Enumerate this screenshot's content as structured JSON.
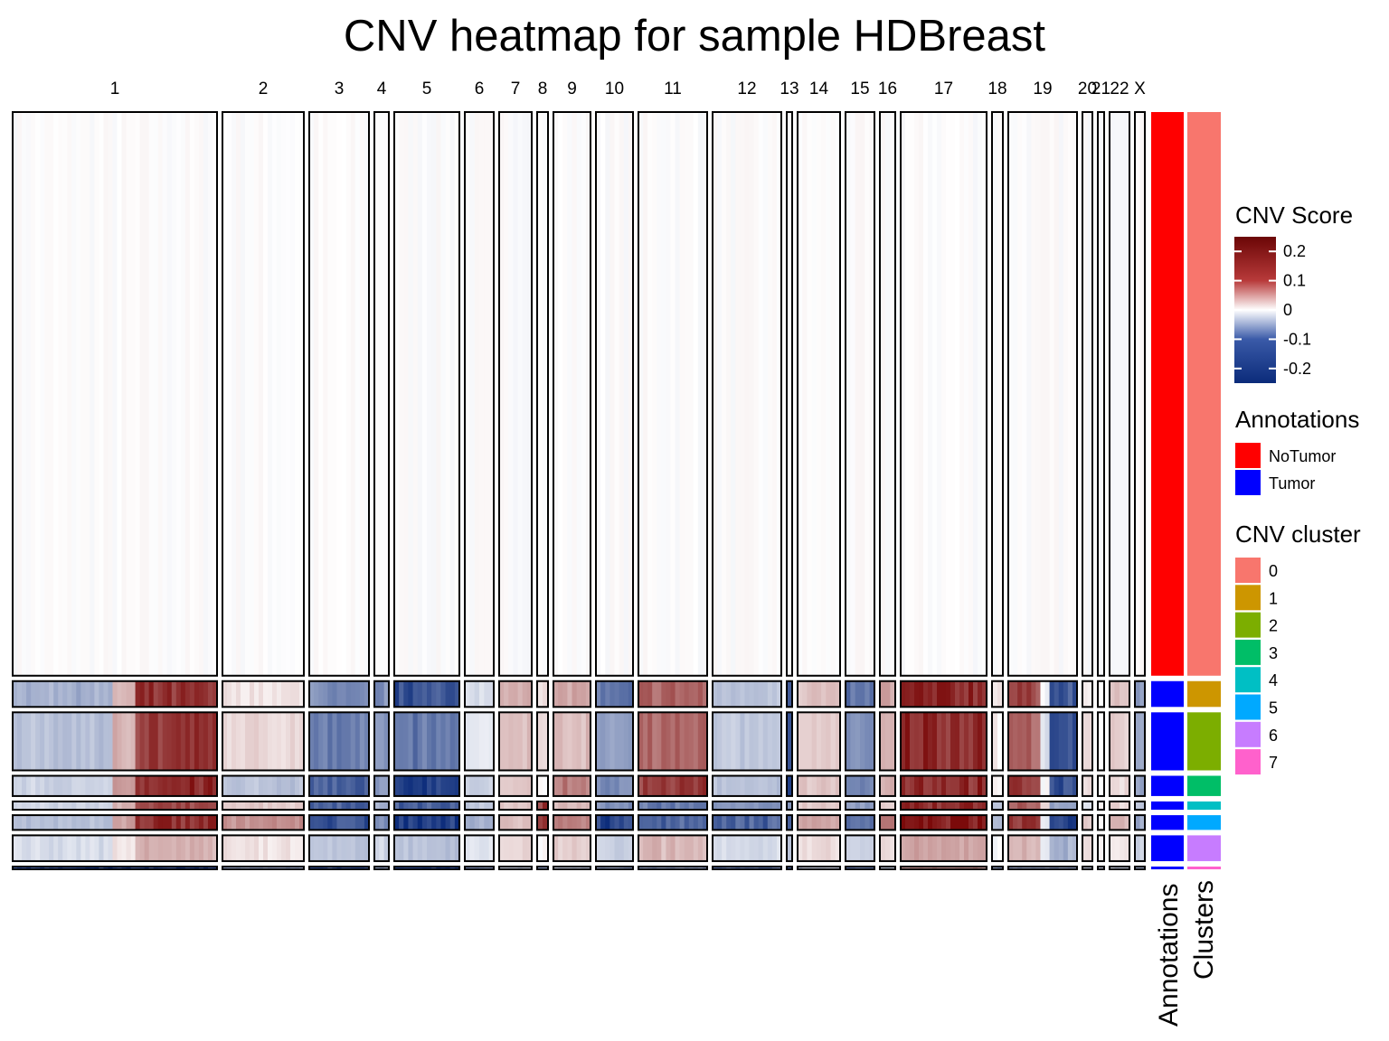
{
  "chart_data": {
    "type": "heatmap",
    "title": "CNV heatmap for sample HDBreast",
    "chromosomes": [
      "1",
      "2",
      "3",
      "4",
      "5",
      "6",
      "7",
      "8",
      "9",
      "10",
      "11",
      "12",
      "13",
      "14",
      "15",
      "16",
      "17",
      "18",
      "19",
      "20",
      "21",
      "22",
      "X"
    ],
    "chromosome_relative_width": [
      226,
      90,
      66,
      16,
      72,
      32,
      36,
      12,
      41,
      41,
      76,
      76,
      6,
      47,
      32,
      17,
      95,
      12,
      76,
      11,
      7,
      22,
      11
    ],
    "colorscale": {
      "title": "CNV Score",
      "range": [
        -0.25,
        0.25
      ],
      "ticks": [
        0.2,
        0.1,
        0,
        -0.1,
        -0.2
      ],
      "tick_labels": [
        "0.2",
        "0.1",
        "0",
        "-0.1",
        "-0.2"
      ],
      "colors": [
        "#0b2b7a",
        "#ffffff",
        "#7b0a0a"
      ]
    },
    "row_groups": [
      {
        "cluster": "0",
        "annotation": "NoTumor",
        "relative_height": 612,
        "profile": [
          0,
          0,
          0,
          0,
          0,
          0,
          0,
          0,
          0,
          0,
          0,
          0,
          0,
          0,
          0,
          0,
          0,
          0,
          0,
          0,
          0,
          0,
          0
        ]
      },
      {
        "cluster": "1",
        "annotation": "Tumor",
        "relative_height": 28,
        "profile": [
          [
            -0.08,
            0.2
          ],
          0.02,
          -0.12,
          -0.12,
          -0.2,
          -0.03,
          0.08,
          0.02,
          0.08,
          -0.15,
          0.15,
          -0.06,
          -0.2,
          0.05,
          -0.15,
          0.08,
          0.22,
          0.02,
          [
            0.18,
            -0.2
          ],
          0.02,
          0.0,
          0.05,
          -0.1
        ]
      },
      {
        "cluster": "2",
        "annotation": "Tumor",
        "relative_height": 63,
        "profile": [
          [
            -0.06,
            0.2
          ],
          0.03,
          -0.15,
          -0.1,
          -0.15,
          -0.02,
          0.06,
          0.02,
          0.06,
          -0.1,
          0.15,
          -0.05,
          -0.2,
          0.04,
          -0.12,
          0.06,
          0.22,
          0.01,
          [
            0.15,
            -0.2
          ],
          0.02,
          0.0,
          0.04,
          -0.08
        ]
      },
      {
        "cluster": "3",
        "annotation": "Tumor",
        "relative_height": 22,
        "profile": [
          [
            -0.04,
            0.22
          ],
          -0.06,
          -0.18,
          -0.12,
          -0.22,
          -0.05,
          0.05,
          0.0,
          0.12,
          -0.12,
          0.2,
          -0.06,
          -0.2,
          0.05,
          -0.14,
          0.08,
          0.22,
          0.0,
          [
            0.2,
            -0.2
          ],
          0.03,
          0.0,
          0.03,
          -0.1
        ]
      },
      {
        "cluster": "4",
        "annotation": "Tumor",
        "relative_height": 9,
        "profile": [
          [
            -0.04,
            0.18
          ],
          0.04,
          -0.18,
          -0.08,
          -0.18,
          -0.06,
          0.04,
          0.2,
          0.06,
          -0.12,
          -0.15,
          -0.12,
          -0.1,
          0.04,
          -0.1,
          0.03,
          0.22,
          -0.06,
          [
            0.15,
            -0.1
          ],
          -0.02,
          0.0,
          0.03,
          -0.05
        ]
      },
      {
        "cluster": "5",
        "annotation": "Tumor",
        "relative_height": 16,
        "profile": [
          [
            -0.06,
            0.22
          ],
          0.1,
          -0.2,
          -0.12,
          -0.24,
          -0.08,
          0.06,
          0.2,
          0.12,
          -0.22,
          -0.18,
          -0.18,
          -0.2,
          0.08,
          -0.15,
          0.12,
          0.24,
          -0.06,
          [
            0.2,
            -0.22
          ],
          0.04,
          0.0,
          0.06,
          -0.1
        ]
      },
      {
        "cluster": "6",
        "annotation": "Tumor",
        "relative_height": 28,
        "profile": [
          [
            -0.03,
            0.07
          ],
          0.02,
          -0.06,
          -0.04,
          -0.06,
          -0.02,
          0.03,
          0.0,
          0.04,
          -0.04,
          0.06,
          -0.03,
          -0.06,
          0.03,
          -0.04,
          0.03,
          0.08,
          0.0,
          [
            0.06,
            -0.08
          ],
          0.02,
          0.0,
          0.02,
          -0.04
        ]
      },
      {
        "cluster": "7",
        "annotation": "Tumor",
        "relative_height": 3,
        "profile": [
          -0.22,
          -0.1,
          -0.2,
          -0.1,
          -0.22,
          -0.12,
          -0.05,
          -0.1,
          -0.05,
          -0.1,
          -0.1,
          -0.15,
          -0.2,
          -0.05,
          -0.15,
          -0.05,
          0.1,
          -0.1,
          -0.1,
          -0.05,
          -0.05,
          -0.05,
          -0.1
        ]
      }
    ]
  },
  "legend_annotations": {
    "title": "Annotations",
    "items": [
      {
        "label": "NoTumor",
        "color": "#ff0000"
      },
      {
        "label": "Tumor",
        "color": "#0000ff"
      }
    ]
  },
  "legend_clusters": {
    "title": "CNV cluster",
    "items": [
      {
        "label": "0",
        "color": "#f8766d"
      },
      {
        "label": "1",
        "color": "#cd9600"
      },
      {
        "label": "2",
        "color": "#7cae00"
      },
      {
        "label": "3",
        "color": "#00be67"
      },
      {
        "label": "4",
        "color": "#00bfc4"
      },
      {
        "label": "5",
        "color": "#00a9ff"
      },
      {
        "label": "6",
        "color": "#c77cff"
      },
      {
        "label": "7",
        "color": "#ff61cc"
      }
    ]
  },
  "side_labels": {
    "annotations": "Annotations",
    "clusters": "Clusters"
  }
}
